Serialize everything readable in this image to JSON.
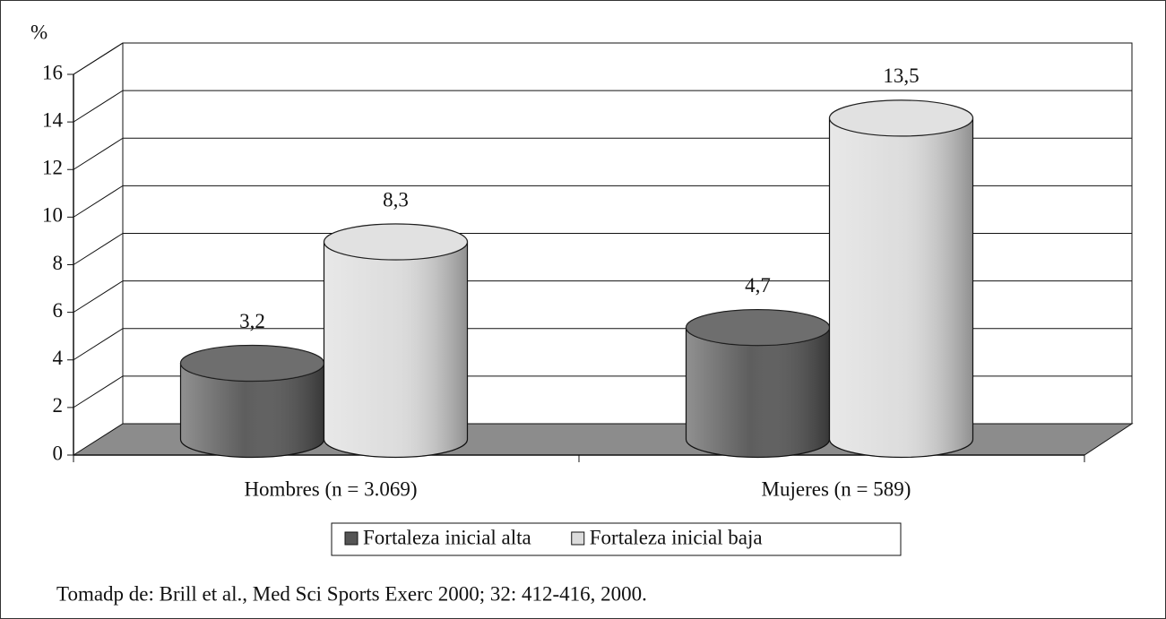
{
  "chart_data": {
    "type": "bar3d-cylinder",
    "y_label": "%",
    "categories": [
      "Hombres (n = 3.069)",
      "Mujeres (n = 589)"
    ],
    "series": [
      {
        "name": "Fortaleza inicial alta",
        "color": "#555555",
        "values": [
          3.2,
          4.7
        ],
        "value_labels": [
          "3,2",
          "4,7"
        ]
      },
      {
        "name": "Fortaleza inicial baja",
        "color": "#dcdcdc",
        "values": [
          8.3,
          13.5
        ],
        "value_labels": [
          "8,3",
          "13,5"
        ]
      }
    ],
    "ylim": [
      0,
      16
    ],
    "yticks": [
      0,
      2,
      4,
      6,
      8,
      10,
      12,
      14,
      16
    ],
    "grid": true,
    "source": "Tomadp de: Brill et al., Med Sci Sports Exerc 2000; 32: 412-416, 2000."
  }
}
